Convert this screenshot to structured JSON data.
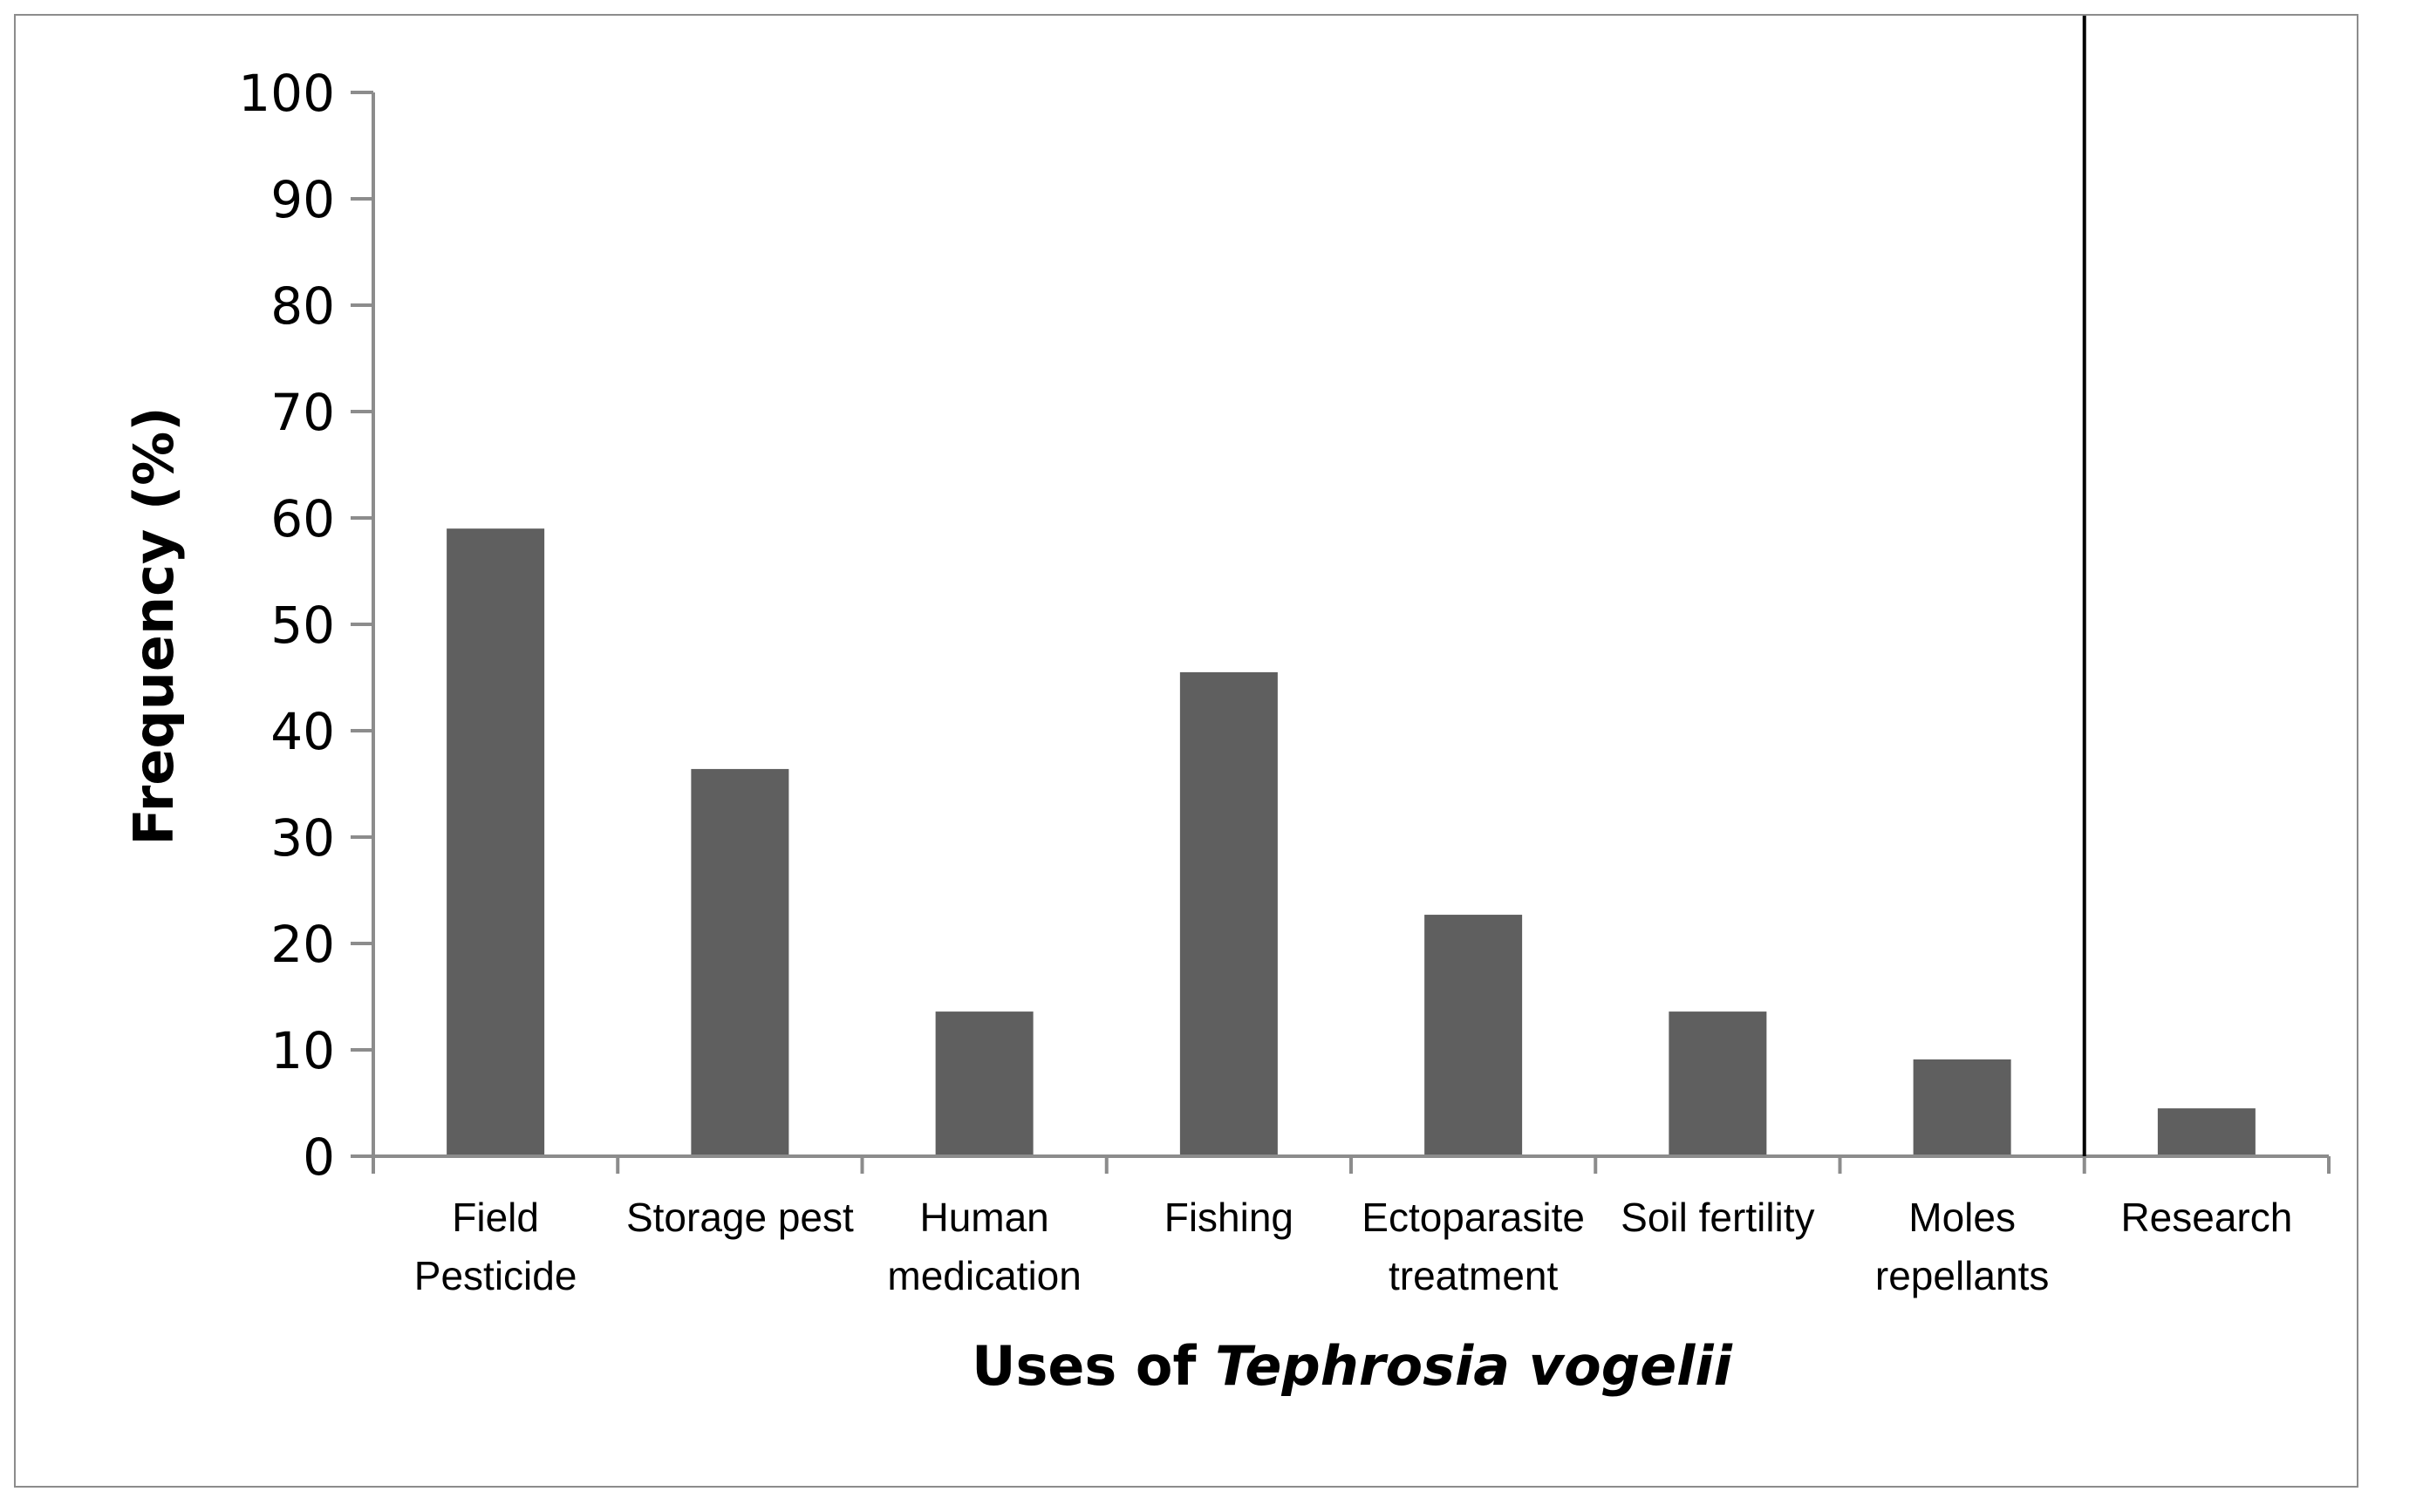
{
  "chart_data": {
    "type": "bar",
    "categories": [
      [
        "Field",
        "Pesticide"
      ],
      [
        "Storage pest"
      ],
      [
        "Human",
        "medication"
      ],
      [
        "Fishing"
      ],
      [
        "Ectoparasite",
        "treatment"
      ],
      [
        "Soil fertility"
      ],
      [
        "Moles",
        "repellants"
      ],
      [
        "Research"
      ]
    ],
    "values": [
      59,
      36.4,
      13.6,
      45.5,
      22.7,
      13.6,
      9.1,
      4.5
    ],
    "ylabel": "Frequency (%)",
    "xlabel": {
      "prefix": "Uses of ",
      "italic": "Tephrosia vogelii"
    },
    "ylim": [
      0,
      100
    ],
    "yticks": [
      0,
      10,
      20,
      30,
      40,
      50,
      60,
      70,
      80,
      90,
      100
    ],
    "separator_after_category": 7,
    "grid": false,
    "legend": "none",
    "colors": {
      "bar": "#5f5f5f",
      "axis": "#8c8c8c",
      "separator": "#000000"
    }
  }
}
